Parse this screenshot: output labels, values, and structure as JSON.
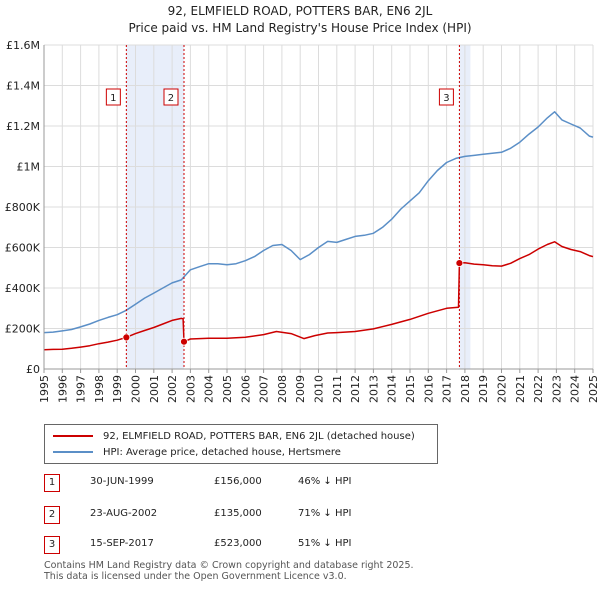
{
  "title": {
    "line1": "92, ELMFIELD ROAD, POTTERS BAR, EN6 2JL",
    "line2": "Price paid vs. HM Land Registry's House Price Index (HPI)"
  },
  "legend": {
    "items": [
      {
        "label": "92, ELMFIELD ROAD, POTTERS BAR, EN6 2JL (detached house)",
        "color": "#cc0000"
      },
      {
        "label": "HPI: Average price, detached house, Hertsmere",
        "color": "#5b8fc7"
      }
    ]
  },
  "sales_table": [
    {
      "num": "1",
      "date": "30-JUN-1999",
      "price": "£156,000",
      "hpi": "46% ↓ HPI"
    },
    {
      "num": "2",
      "date": "23-AUG-2002",
      "price": "£135,000",
      "hpi": "71% ↓ HPI"
    },
    {
      "num": "3",
      "date": "15-SEP-2017",
      "price": "£523,000",
      "hpi": "51% ↓ HPI"
    }
  ],
  "footer": {
    "line1": "Contains HM Land Registry data © Crown copyright and database right 2025.",
    "line2": "This data is licensed under the Open Government Licence v3.0."
  },
  "colors": {
    "property": "#cc0000",
    "hpi": "#5b8fc7",
    "shade": "#e8eefa",
    "marker_line": "#cc0000"
  },
  "chart_data": {
    "type": "line",
    "title": "92, ELMFIELD ROAD, POTTERS BAR, EN6 2JL — Price paid vs. HM Land Registry's House Price Index (HPI)",
    "xlabel": "",
    "ylabel": "",
    "xlim": [
      1995,
      2025
    ],
    "ylim": [
      0,
      1600000
    ],
    "x_ticks": [
      1995,
      1996,
      1997,
      1998,
      1999,
      2000,
      2001,
      2002,
      2003,
      2004,
      2005,
      2006,
      2007,
      2008,
      2009,
      2010,
      2011,
      2012,
      2013,
      2014,
      2015,
      2016,
      2017,
      2018,
      2019,
      2020,
      2021,
      2022,
      2023,
      2024,
      2025
    ],
    "y_ticks": [
      {
        "value": 0,
        "label": "£0"
      },
      {
        "value": 200000,
        "label": "£200K"
      },
      {
        "value": 400000,
        "label": "£400K"
      },
      {
        "value": 600000,
        "label": "£600K"
      },
      {
        "value": 800000,
        "label": "£800K"
      },
      {
        "value": 1000000,
        "label": "£1M"
      },
      {
        "value": 1200000,
        "label": "£1.2M"
      },
      {
        "value": 1400000,
        "label": "£1.4M"
      },
      {
        "value": 1600000,
        "label": "£1.6M"
      }
    ],
    "shaded_ranges": [
      [
        1999.5,
        2002.65
      ],
      [
        2017.7,
        2018.3
      ]
    ],
    "sales": [
      {
        "num": "1",
        "x": 1999.5,
        "y": 156000
      },
      {
        "num": "2",
        "x": 2002.65,
        "y": 135000
      },
      {
        "num": "3",
        "x": 2017.7,
        "y": 523000
      }
    ],
    "series": [
      {
        "name": "92, ELMFIELD ROAD, POTTERS BAR, EN6 2JL (detached house)",
        "color": "#cc0000",
        "points": [
          [
            1995.0,
            95000
          ],
          [
            1995.5,
            97000
          ],
          [
            1996.0,
            98000
          ],
          [
            1996.5,
            102000
          ],
          [
            1997.0,
            108000
          ],
          [
            1997.5,
            115000
          ],
          [
            1998.0,
            125000
          ],
          [
            1998.5,
            133000
          ],
          [
            1999.0,
            142000
          ],
          [
            1999.5,
            156000
          ],
          [
            2000.0,
            175000
          ],
          [
            2000.5,
            190000
          ],
          [
            2001.0,
            205000
          ],
          [
            2001.5,
            222000
          ],
          [
            2002.0,
            240000
          ],
          [
            2002.5,
            250000
          ],
          [
            2002.6,
            248000
          ],
          [
            2002.65,
            135000
          ],
          [
            2003.0,
            148000
          ],
          [
            2003.5,
            150000
          ],
          [
            2004.0,
            152000
          ],
          [
            2005.0,
            152000
          ],
          [
            2006.0,
            157000
          ],
          [
            2007.0,
            170000
          ],
          [
            2007.7,
            185000
          ],
          [
            2008.5,
            175000
          ],
          [
            2009.2,
            150000
          ],
          [
            2009.8,
            165000
          ],
          [
            2010.5,
            178000
          ],
          [
            2011.0,
            180000
          ],
          [
            2012.0,
            185000
          ],
          [
            2013.0,
            198000
          ],
          [
            2014.0,
            220000
          ],
          [
            2015.0,
            245000
          ],
          [
            2016.0,
            275000
          ],
          [
            2017.0,
            300000
          ],
          [
            2017.65,
            305000
          ],
          [
            2017.7,
            523000
          ],
          [
            2018.0,
            525000
          ],
          [
            2018.5,
            518000
          ],
          [
            2019.0,
            515000
          ],
          [
            2019.5,
            510000
          ],
          [
            2020.0,
            508000
          ],
          [
            2020.5,
            522000
          ],
          [
            2021.0,
            545000
          ],
          [
            2021.5,
            565000
          ],
          [
            2022.0,
            592000
          ],
          [
            2022.5,
            615000
          ],
          [
            2022.9,
            628000
          ],
          [
            2023.3,
            605000
          ],
          [
            2023.8,
            590000
          ],
          [
            2024.3,
            580000
          ],
          [
            2024.8,
            560000
          ],
          [
            2025.0,
            555000
          ]
        ]
      },
      {
        "name": "HPI: Average price, detached house, Hertsmere",
        "color": "#5b8fc7",
        "points": [
          [
            1995.0,
            180000
          ],
          [
            1995.5,
            182000
          ],
          [
            1996.0,
            188000
          ],
          [
            1996.5,
            195000
          ],
          [
            1997.0,
            208000
          ],
          [
            1997.5,
            222000
          ],
          [
            1998.0,
            240000
          ],
          [
            1998.5,
            255000
          ],
          [
            1999.0,
            268000
          ],
          [
            1999.5,
            290000
          ],
          [
            2000.0,
            320000
          ],
          [
            2000.5,
            350000
          ],
          [
            2001.0,
            375000
          ],
          [
            2001.5,
            400000
          ],
          [
            2002.0,
            425000
          ],
          [
            2002.5,
            440000
          ],
          [
            2003.0,
            490000
          ],
          [
            2003.5,
            505000
          ],
          [
            2004.0,
            520000
          ],
          [
            2004.5,
            520000
          ],
          [
            2005.0,
            515000
          ],
          [
            2005.5,
            520000
          ],
          [
            2006.0,
            535000
          ],
          [
            2006.5,
            555000
          ],
          [
            2007.0,
            585000
          ],
          [
            2007.5,
            610000
          ],
          [
            2008.0,
            615000
          ],
          [
            2008.5,
            585000
          ],
          [
            2009.0,
            540000
          ],
          [
            2009.5,
            565000
          ],
          [
            2010.0,
            600000
          ],
          [
            2010.5,
            630000
          ],
          [
            2011.0,
            625000
          ],
          [
            2011.5,
            640000
          ],
          [
            2012.0,
            655000
          ],
          [
            2012.5,
            660000
          ],
          [
            2013.0,
            670000
          ],
          [
            2013.5,
            700000
          ],
          [
            2014.0,
            740000
          ],
          [
            2014.5,
            790000
          ],
          [
            2015.0,
            830000
          ],
          [
            2015.5,
            870000
          ],
          [
            2016.0,
            930000
          ],
          [
            2016.5,
            980000
          ],
          [
            2017.0,
            1020000
          ],
          [
            2017.5,
            1040000
          ],
          [
            2018.0,
            1050000
          ],
          [
            2018.5,
            1055000
          ],
          [
            2019.0,
            1060000
          ],
          [
            2019.5,
            1065000
          ],
          [
            2020.0,
            1070000
          ],
          [
            2020.5,
            1090000
          ],
          [
            2021.0,
            1120000
          ],
          [
            2021.5,
            1160000
          ],
          [
            2022.0,
            1195000
          ],
          [
            2022.5,
            1240000
          ],
          [
            2022.9,
            1270000
          ],
          [
            2023.3,
            1230000
          ],
          [
            2023.8,
            1210000
          ],
          [
            2024.3,
            1190000
          ],
          [
            2024.8,
            1150000
          ],
          [
            2025.0,
            1145000
          ]
        ]
      }
    ]
  }
}
